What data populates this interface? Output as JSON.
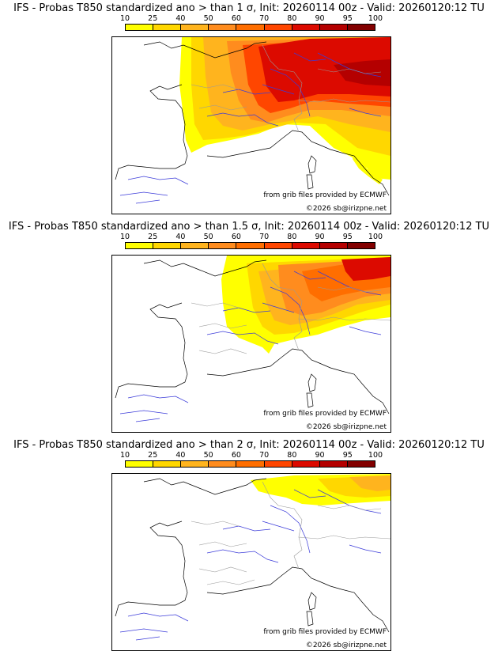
{
  "legend": {
    "labels": [
      "10",
      "25",
      "40",
      "50",
      "60",
      "70",
      "80",
      "90",
      "95",
      "100"
    ],
    "colors": [
      "#ffff00",
      "#ffd700",
      "#ffb41e",
      "#ff8c1e",
      "#ff6e00",
      "#ff4600",
      "#dc0a00",
      "#b40000",
      "#820000"
    ]
  },
  "source_credit": "from grib files provided by ECMWF",
  "copyright": "©2026 sb@irizpne.net",
  "panels": [
    {
      "title": "IFS - Probas T850  standardized ano > than 1 σ, Init: 20260114 00z - Valid: 20260120:12 TU"
    },
    {
      "title": "IFS - Probas T850  standardized ano > than 1.5 σ, Init: 20260114 00z - Valid: 20260120:12 TU"
    },
    {
      "title": "IFS - Probas T850  standardized ano > than 2 σ, Init: 20260114 00z - Valid: 20260120:12 TU"
    }
  ]
}
